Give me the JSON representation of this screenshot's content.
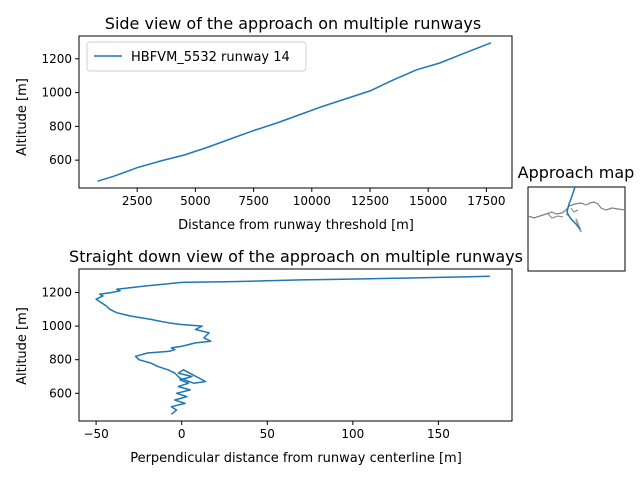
{
  "chart_data": [
    {
      "type": "line",
      "title": "Side view of the approach on multiple runways",
      "xlabel": "Distance from runway threshold [m]",
      "ylabel": "Altitude [m]",
      "xlim": [
        0,
        18600
      ],
      "ylim": [
        435,
        1335
      ],
      "xticks": [
        2500,
        5000,
        7500,
        10000,
        12500,
        15000,
        17500
      ],
      "yticks": [
        600,
        800,
        1000,
        1200
      ],
      "grid": false,
      "legend": "top-left",
      "color": "#1f77b4",
      "series": [
        {
          "name": "HBFVM_5532 runway 14",
          "x": [
            800,
            1500,
            2500,
            3500,
            4500,
            5500,
            6500,
            7500,
            8500,
            9500,
            10500,
            11500,
            12500,
            13500,
            14500,
            15500,
            16500,
            17700
          ],
          "y": [
            475,
            505,
            555,
            595,
            630,
            675,
            725,
            775,
            820,
            870,
            920,
            965,
            1010,
            1075,
            1135,
            1175,
            1230,
            1295
          ]
        }
      ]
    },
    {
      "type": "line",
      "title": "Straight down view of the approach on multiple runways",
      "xlabel": "Perpendicular distance from runway centerline [m]",
      "ylabel": "Altitude [m]",
      "xlim": [
        -60,
        193
      ],
      "ylim": [
        435,
        1340
      ],
      "xticks": [
        -50,
        0,
        50,
        100,
        150
      ],
      "yticks": [
        600,
        800,
        1000,
        1200
      ],
      "grid": false,
      "color": "#1f77b4",
      "series": [
        {
          "x": [
            -6,
            -3,
            -6,
            2,
            -4,
            3,
            -3,
            5,
            -2,
            4,
            -1,
            6,
            -2,
            1,
            14,
            7,
            -1,
            -4,
            -8,
            -14,
            -18,
            -25,
            -27,
            -20,
            -7,
            -4,
            -6,
            0,
            4,
            8,
            17,
            13,
            16,
            8,
            12,
            -1,
            -8,
            -13,
            -18,
            -30,
            -38,
            -42,
            -44,
            -47,
            -50,
            -46,
            -48,
            -41,
            -36,
            -38,
            -29,
            -20,
            -10,
            0,
            30,
            50,
            70,
            90,
            110,
            130,
            150,
            165,
            180
          ],
          "y": [
            475,
            500,
            520,
            540,
            560,
            580,
            600,
            620,
            640,
            660,
            680,
            700,
            720,
            740,
            670,
            660,
            690,
            720,
            740,
            760,
            780,
            800,
            820,
            840,
            850,
            860,
            870,
            880,
            890,
            900,
            910,
            930,
            960,
            980,
            1000,
            1010,
            1020,
            1030,
            1040,
            1060,
            1080,
            1100,
            1120,
            1140,
            1160,
            1180,
            1190,
            1200,
            1210,
            1220,
            1230,
            1240,
            1250,
            1260,
            1265,
            1270,
            1275,
            1278,
            1282,
            1286,
            1290,
            1293,
            1297
          ]
        }
      ]
    },
    {
      "type": "map",
      "title": "Approach map",
      "colors": {
        "track": "#1f77b4",
        "coastline": "#808080",
        "runway": "#a0a0a0"
      }
    }
  ]
}
